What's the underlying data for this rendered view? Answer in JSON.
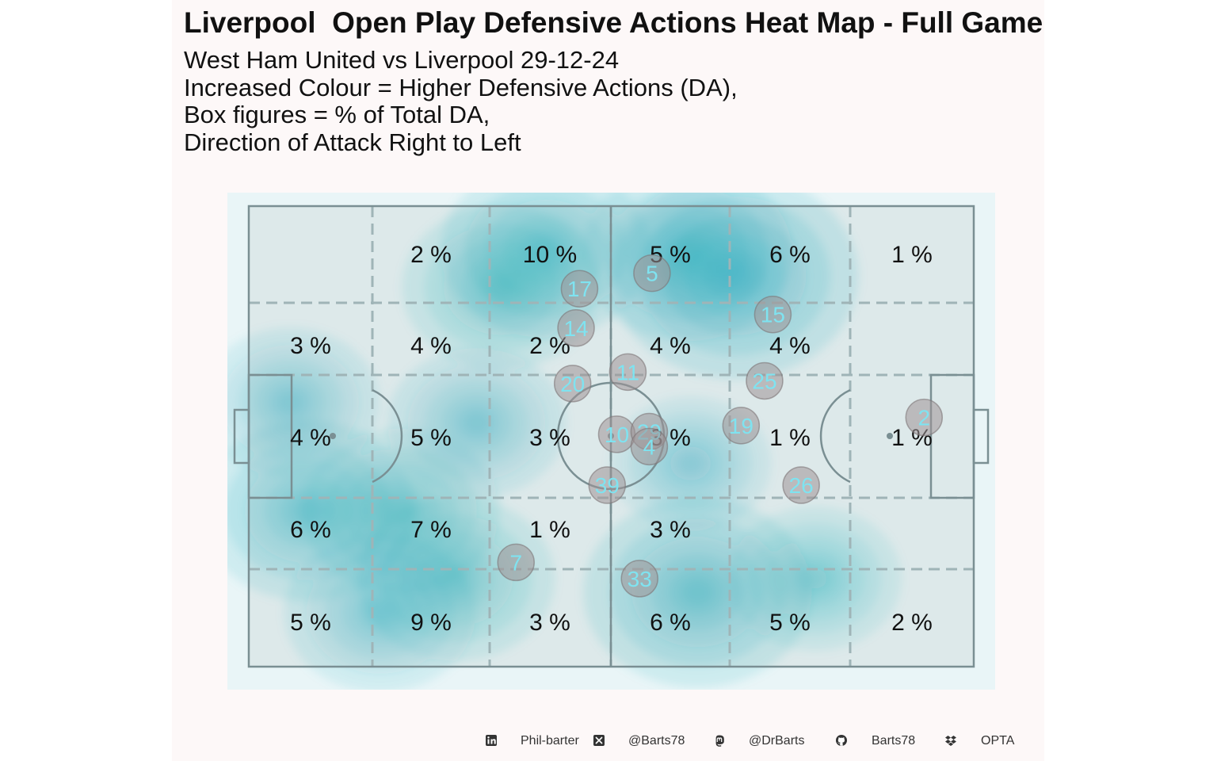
{
  "chart_data": {
    "type": "heatmap",
    "title": "Liverpool  Open Play Defensive Actions Heat Map - Full Game",
    "subtitle_lines": [
      "West Ham United vs Liverpool 29-12-24",
      "Increased Colour = Higher Defensive Actions (DA),",
      "Box figures = % of Total DA,",
      "Direction of Attack Right to Left"
    ],
    "zone_percentages": [
      [
        "",
        "2 %",
        "10 %",
        "5 %",
        "6 %",
        "1 %"
      ],
      [
        "3 %",
        "4 %",
        "2 %",
        "4 %",
        "4 %",
        ""
      ],
      [
        "4 %",
        "5 %",
        "3 %",
        "3 %",
        "1 %",
        "1 %"
      ],
      [
        "6 %",
        "7 %",
        "1 %",
        "3 %",
        "",
        ""
      ],
      [
        "5 %",
        "9 %",
        "3 %",
        "6 %",
        "5 %",
        "2 %"
      ]
    ],
    "pitch": {
      "length": 105,
      "width": 68
    },
    "player_positions": [
      {
        "number": "5",
        "x": 58.4,
        "y": 9.9
      },
      {
        "number": "17",
        "x": 47.9,
        "y": 12.2
      },
      {
        "number": "15",
        "x": 75.9,
        "y": 16.0
      },
      {
        "number": "14",
        "x": 47.4,
        "y": 18.0
      },
      {
        "number": "11",
        "x": 54.9,
        "y": 24.5
      },
      {
        "number": "25",
        "x": 74.7,
        "y": 25.8
      },
      {
        "number": "20",
        "x": 46.9,
        "y": 26.2
      },
      {
        "number": "2",
        "x": 97.8,
        "y": 31.2
      },
      {
        "number": "10",
        "x": 53.3,
        "y": 33.7
      },
      {
        "number": "29",
        "x": 58.0,
        "y": 33.3
      },
      {
        "number": "19",
        "x": 71.3,
        "y": 32.4
      },
      {
        "number": "4",
        "x": 58.0,
        "y": 35.5
      },
      {
        "number": "39",
        "x": 51.9,
        "y": 41.2
      },
      {
        "number": "26",
        "x": 80.0,
        "y": 41.2
      },
      {
        "number": "7",
        "x": 38.7,
        "y": 52.6
      },
      {
        "number": "33",
        "x": 56.6,
        "y": 55.0
      }
    ],
    "density_hotspots": [
      {
        "x": 70.4,
        "y": 10.3,
        "weight": 1.0
      },
      {
        "x": 63.5,
        "y": 7.0,
        "weight": 0.7
      },
      {
        "x": 43.0,
        "y": 6.5,
        "weight": 0.7
      },
      {
        "x": 36.5,
        "y": 12.0,
        "weight": 0.6
      },
      {
        "x": 8.5,
        "y": 45.0,
        "weight": 0.75
      },
      {
        "x": 22.0,
        "y": 45.0,
        "weight": 0.6
      },
      {
        "x": 65.0,
        "y": 57.0,
        "weight": 0.85
      },
      {
        "x": 30.0,
        "y": 55.0,
        "weight": 0.6
      },
      {
        "x": 19.0,
        "y": 60.0,
        "weight": 0.55
      },
      {
        "x": 6.0,
        "y": 29.0,
        "weight": 0.45
      },
      {
        "x": 33.0,
        "y": 32.0,
        "weight": 0.45
      },
      {
        "x": 82.0,
        "y": 55.0,
        "weight": 0.4
      },
      {
        "x": 64.0,
        "y": 38.0,
        "weight": 0.3
      }
    ],
    "colors": {
      "heat": "#1aa6b8",
      "pitch_bg": "#dde9ea",
      "outer_bg": "#e9f5f7",
      "lines": "#7a8f93",
      "zone_lines": "#9fb4b7",
      "player_circle": "#9e9496",
      "player_text": "#7fe3f0"
    }
  },
  "footer": {
    "linkedin": {
      "icon": "linkedin-icon",
      "text": "Phil-barter"
    },
    "x": {
      "icon": "x-icon",
      "text": "@Barts78"
    },
    "mastodon": {
      "icon": "mastodon-icon",
      "text": "@DrBarts"
    },
    "github": {
      "icon": "github-icon",
      "text": "Barts78"
    },
    "dropbox": {
      "icon": "dropbox-icon",
      "text": "OPTA"
    }
  }
}
